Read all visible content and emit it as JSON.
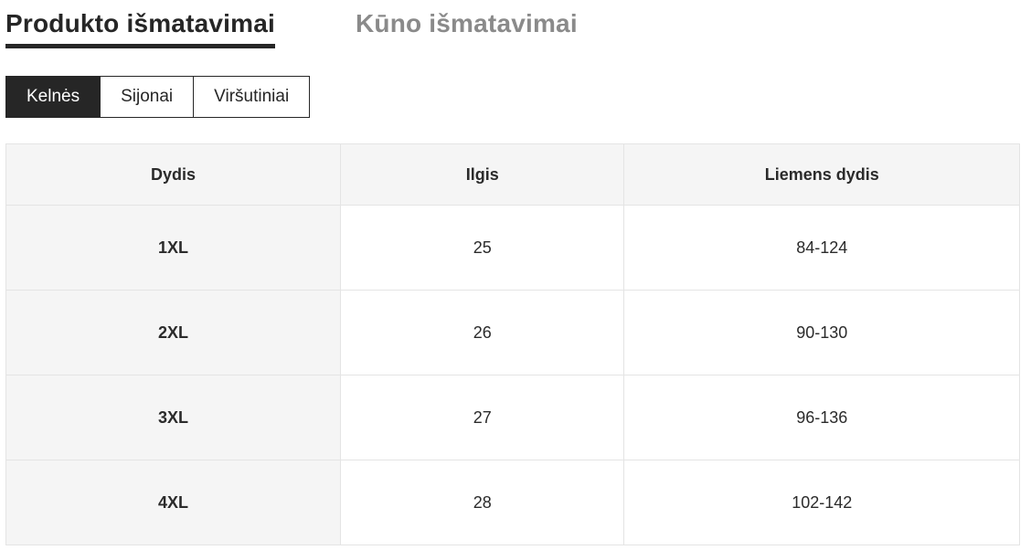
{
  "colors": {
    "accent_dark": "#262626",
    "inactive_gray": "#8a8a8a",
    "table_header_bg": "#f5f5f5",
    "table_border": "#e4e4e4"
  },
  "primary_tabs": [
    {
      "label": "Produkto išmatavimai",
      "active": true
    },
    {
      "label": "Kūno išmatavimai",
      "active": false
    }
  ],
  "category_tabs": [
    {
      "label": "Kelnės",
      "active": true
    },
    {
      "label": "Sijonai",
      "active": false
    },
    {
      "label": "Viršutiniai",
      "active": false
    }
  ],
  "table": {
    "headers": [
      "Dydis",
      "Ilgis",
      "Liemens dydis"
    ],
    "rows": [
      [
        "1XL",
        "25",
        "84-124"
      ],
      [
        "2XL",
        "26",
        "90-130"
      ],
      [
        "3XL",
        "27",
        "96-136"
      ],
      [
        "4XL",
        "28",
        "102-142"
      ]
    ]
  }
}
